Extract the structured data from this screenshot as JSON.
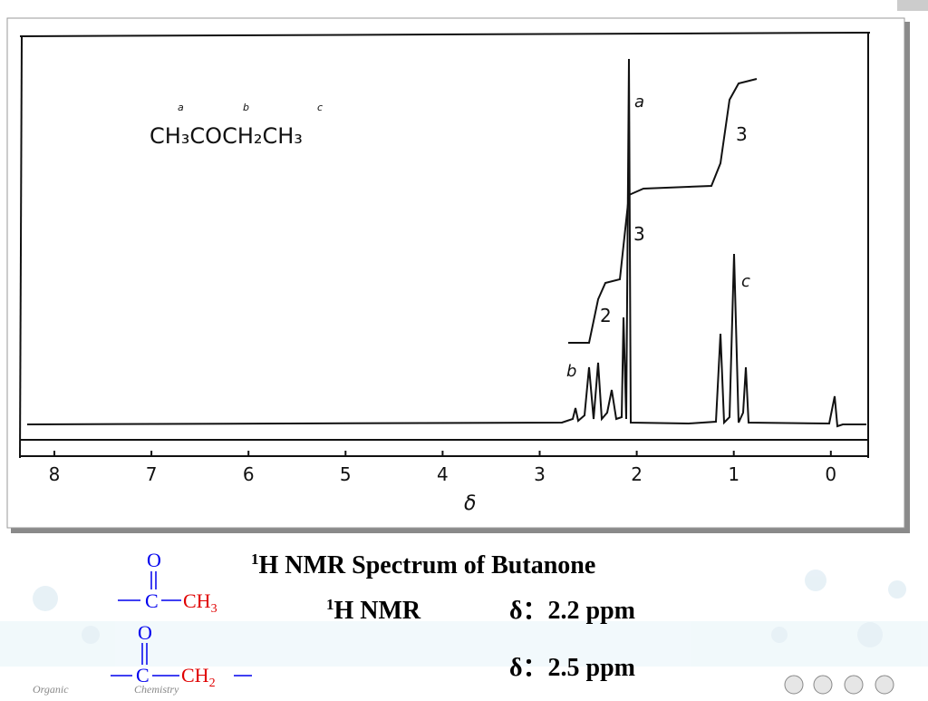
{
  "spectrum": {
    "formula": "CH₃COCH₂CH₃",
    "formula_labels": [
      "a",
      "b",
      "c"
    ],
    "peak_labels": [
      "a",
      "b",
      "c"
    ],
    "integrals": [
      "2",
      "3",
      "3"
    ],
    "axis_ticks": [
      "8",
      "7",
      "6",
      "5",
      "4",
      "3",
      "2",
      "1",
      "0"
    ],
    "axis_label": "δ"
  },
  "caption": {
    "title_sup": "1",
    "title": "H NMR Spectrum of Butanone",
    "line1_sup": "1",
    "line1_label": "H NMR",
    "line1_shift": "δ：2.2 ppm",
    "line2_shift": "δ：2.5 ppm"
  },
  "structures": [
    {
      "oxygen": "O",
      "carbon": "C",
      "group": "CH",
      "subscript": "3"
    },
    {
      "oxygen": "O",
      "carbon": "C",
      "group": "CH",
      "subscript": "2"
    }
  ],
  "footer": {
    "left": "Organic",
    "right": "Chemistry"
  }
}
